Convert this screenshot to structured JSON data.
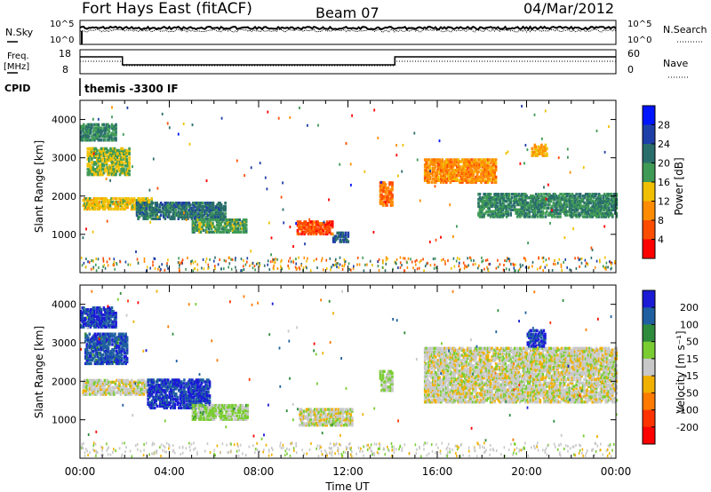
{
  "header": {
    "station": "Fort Hays East (fitACF)",
    "beam": "Beam 07",
    "date": "04/Mar/2012"
  },
  "status_panels": {
    "nsky_label": "N.Sky",
    "nsky_ticks": [
      "10^5",
      "10^0"
    ],
    "nsearch_label": "N.Search",
    "nsearch_ticks": [
      "10^5",
      "10^0"
    ],
    "freq_label": "Freq.",
    "freq_unit": "[MHz]",
    "freq_ticks": [
      "18",
      "8"
    ],
    "nave_label": "Nave",
    "nave_ticks": [
      "60",
      "0"
    ],
    "cpid_label": "CPID",
    "cpid_value": "themis -3300 IF"
  },
  "colors": {
    "power_scale": [
      "#0015ff",
      "#1f3fa8",
      "#2a6e6c",
      "#3f9a55",
      "#f0c000",
      "#ff8c00",
      "#ff4d00",
      "#ff0000"
    ],
    "velocity_scale": [
      "#1b1bd6",
      "#1f5fa0",
      "#2e8b3c",
      "#7acc33",
      "#c8c8c8",
      "#f0b000",
      "#ff7a00",
      "#ff3300",
      "#ff0000"
    ]
  },
  "chart_data": [
    {
      "type": "heatmap",
      "name": "power-panel",
      "xlabel": "",
      "ylabel": "Slant Range [km]",
      "yticks": [
        "4000",
        "3000",
        "2000",
        "1000"
      ],
      "ylim": [
        0,
        4500
      ],
      "colorbar_label": "Power [dB]",
      "colorbar_ticks": [
        "28",
        "24",
        "20",
        "16",
        "12",
        "8",
        "4"
      ],
      "clim": [
        0,
        32
      ],
      "echo_regions": [
        {
          "t0": 0.0,
          "t1": 1.6,
          "r0": 3500,
          "r1": 3950,
          "v": 20
        },
        {
          "t0": 0.3,
          "t1": 2.2,
          "r0": 2600,
          "r1": 3300,
          "v": 16
        },
        {
          "t0": 0.1,
          "t1": 3.2,
          "r0": 1700,
          "r1": 2000,
          "v": 14
        },
        {
          "t0": 2.5,
          "t1": 6.5,
          "r0": 1450,
          "r1": 1900,
          "v": 22
        },
        {
          "t0": 5.0,
          "t1": 7.4,
          "r0": 1100,
          "r1": 1450,
          "v": 18
        },
        {
          "t0": 9.7,
          "t1": 11.3,
          "r0": 1050,
          "r1": 1400,
          "v": 6
        },
        {
          "t0": 11.3,
          "t1": 12.0,
          "r0": 850,
          "r1": 1100,
          "v": 24
        },
        {
          "t0": 13.4,
          "t1": 14.0,
          "r0": 1800,
          "r1": 2400,
          "v": 8
        },
        {
          "t0": 15.4,
          "t1": 18.6,
          "r0": 2400,
          "r1": 3000,
          "v": 10
        },
        {
          "t0": 17.8,
          "t1": 24.0,
          "r0": 1500,
          "r1": 2100,
          "v": 20
        },
        {
          "t0": 20.2,
          "t1": 20.9,
          "r0": 3100,
          "r1": 3400,
          "v": 12
        }
      ]
    },
    {
      "type": "heatmap",
      "name": "velocity-panel",
      "xlabel": "Time UT",
      "ylabel": "Slant Range [km]",
      "xticks": [
        "00:00",
        "04:00",
        "08:00",
        "12:00",
        "16:00",
        "20:00",
        "00:00"
      ],
      "xlim": [
        0,
        24
      ],
      "yticks": [
        "4000",
        "3000",
        "2000",
        "1000"
      ],
      "ylim": [
        0,
        4500
      ],
      "colorbar_label": "Velocity [m s⁻¹]",
      "colorbar_ticks": [
        "200",
        "100",
        "50",
        "15",
        "-15",
        "-50",
        "-100",
        "-200"
      ],
      "clim": [
        -250,
        250
      ],
      "echo_regions": [
        {
          "t0": 0.0,
          "t1": 1.6,
          "r0": 3450,
          "r1": 3950,
          "v": 200
        },
        {
          "t0": 0.2,
          "t1": 2.1,
          "r0": 2500,
          "r1": 3300,
          "v": 180
        },
        {
          "t0": 0.1,
          "t1": 3.0,
          "r0": 1700,
          "r1": 2100,
          "v": 0
        },
        {
          "t0": 3.0,
          "t1": 5.8,
          "r0": 1350,
          "r1": 2100,
          "v": 200
        },
        {
          "t0": 5.0,
          "t1": 7.5,
          "r0": 1050,
          "r1": 1450,
          "v": 40
        },
        {
          "t0": 9.8,
          "t1": 12.2,
          "r0": 900,
          "r1": 1350,
          "v": 0
        },
        {
          "t0": 13.4,
          "t1": 14.0,
          "r0": 1800,
          "r1": 2300,
          "v": 30
        },
        {
          "t0": 15.4,
          "t1": 24.0,
          "r0": 1500,
          "r1": 2900,
          "v": 0
        },
        {
          "t0": 20.0,
          "t1": 20.8,
          "r0": 2950,
          "r1": 3400,
          "v": 200
        }
      ]
    }
  ]
}
